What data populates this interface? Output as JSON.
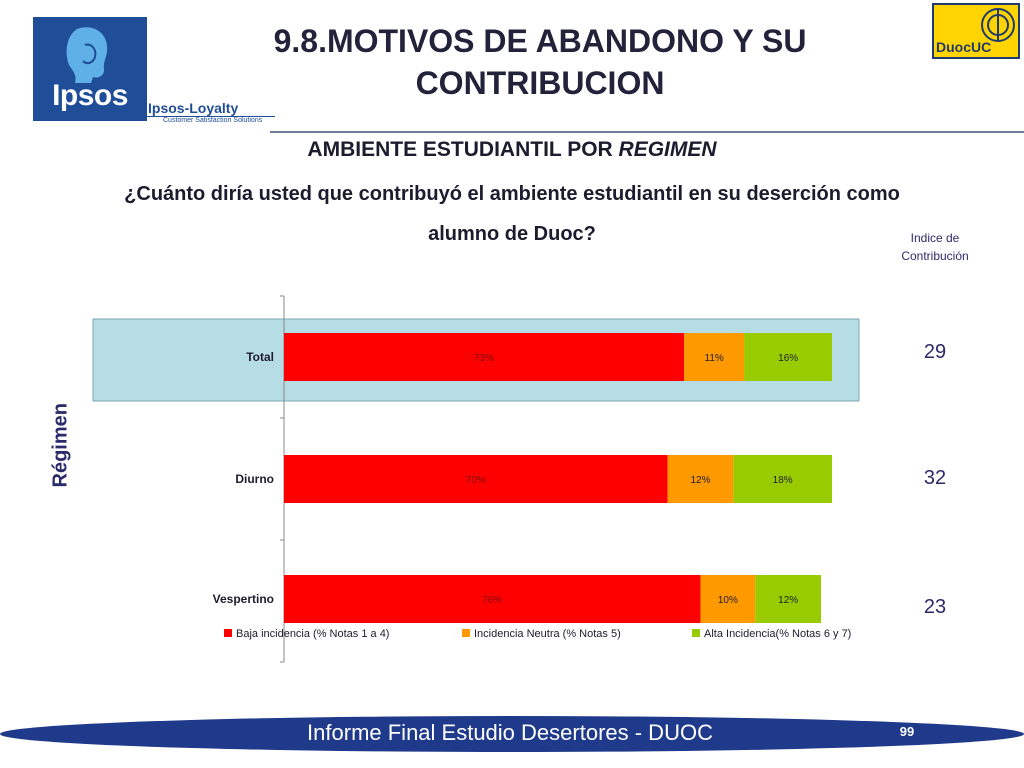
{
  "header": {
    "title_line1": "9.8.MOTIVOS DE ABANDONO Y SU",
    "title_line2": "CONTRIBUCION",
    "ipsos_logo": "Ipsos",
    "ipsos_loyalty": "Ipsos-Loyalty",
    "ipsos_loyalty_sub": "Customer Satisfaction Solutions",
    "duoc_logo": "DuocUC"
  },
  "subtitle": {
    "part1": "AMBIENTE ESTUDIANTIL POR ",
    "part2": "REGIMEN"
  },
  "question": {
    "line1": "¿Cuánto diría usted que contribuyó el ambiente estudiantil en su deserción como",
    "line2": "alumno de Duoc?"
  },
  "index_header": {
    "line1": "Indice de",
    "line2": "Contribución"
  },
  "chart_data": {
    "type": "bar",
    "orientation": "horizontal",
    "stacked": true,
    "ylabel": "Régimen",
    "categories": [
      "Total",
      "Diurno",
      "Vespertino"
    ],
    "series": [
      {
        "name": "Baja incidencia (% Notas 1 a 4)",
        "values": [
          73,
          70,
          76
        ],
        "labels": [
          "73%",
          "70%",
          "76%"
        ],
        "color": "#ff0000"
      },
      {
        "name": "Incidencia Neutra (% Notas 5)",
        "values": [
          11,
          12,
          10
        ],
        "labels": [
          "11%",
          "12%",
          "10%"
        ],
        "color": "#ff9900"
      },
      {
        "name": "Alta Incidencia(% Notas 6 y 7)",
        "values": [
          16,
          18,
          12
        ],
        "labels": [
          "16%",
          "18%",
          "12%"
        ],
        "color": "#99cc00"
      }
    ],
    "highlighted_category": "Total",
    "highlight_color": "#b7dde4",
    "contribution_index": [
      29,
      32,
      23
    ],
    "legend_position": "bottom"
  },
  "footer": {
    "text": "Informe Final Estudio Desertores - DUOC",
    "page": "99",
    "color": "#1f3a8a"
  }
}
